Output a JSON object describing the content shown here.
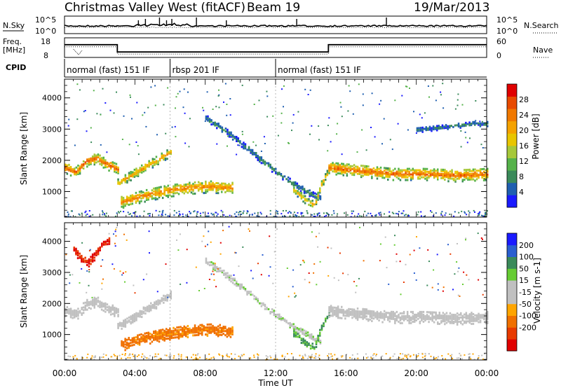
{
  "header": {
    "station": "Christmas Valley West (fitACF)",
    "beam": "Beam 19",
    "date": "19/Mar/2013"
  },
  "noise_panel": {
    "left_label": "N.Sky",
    "right_label": "N.Search",
    "left_ticks": [
      "10^5",
      "10^0"
    ],
    "right_ticks": [
      "10^5",
      "10^0"
    ]
  },
  "freq_panel": {
    "left_label_1": "Freq.",
    "left_label_2": "[MHz]",
    "right_label": "Nave",
    "left_ticks": [
      "18",
      "8"
    ],
    "right_ticks": [
      "60",
      "0"
    ],
    "freq_series_mhz": [
      {
        "t": 0.0,
        "v": 14.5
      },
      {
        "t": 3.0,
        "v": 14.5
      },
      {
        "t": 3.0,
        "v": 10.8
      },
      {
        "t": 15.0,
        "v": 10.8
      },
      {
        "t": 15.0,
        "v": 14.5
      },
      {
        "t": 24.0,
        "v": 14.5
      }
    ]
  },
  "cpid": {
    "label": "CPID",
    "segments": [
      {
        "start": 0.0,
        "end": 6.0,
        "name": "normal (fast) 151 IF"
      },
      {
        "start": 6.0,
        "end": 12.0,
        "name": "rbsp 201 IF"
      },
      {
        "start": 12.0,
        "end": 24.0,
        "name": "normal (fast) 151 IF"
      }
    ]
  },
  "colors": {
    "power": [
      "#1a1aff",
      "#1f5fb0",
      "#3a8a5a",
      "#55b24a",
      "#a6c83a",
      "#e8c500",
      "#f5a200",
      "#f07800",
      "#e84a00",
      "#e00000"
    ],
    "velocity": [
      "#1a1aff",
      "#2a5fd0",
      "#3a8a5a",
      "#66cc33",
      "#c0c0c0",
      "#c0c0c0",
      "#ffa500",
      "#f07000",
      "#e83a00",
      "#e00000"
    ],
    "ground_scatter": "#c0c0c0"
  },
  "chart_data": [
    {
      "type": "heatmap",
      "name": "power",
      "ylabel": "Slant Range [km]",
      "ylim": [
        180,
        4600
      ],
      "xlim": [
        0,
        24
      ],
      "yticks": [
        1000,
        2000,
        3000,
        4000
      ],
      "colorbar_label": "Power [dB]",
      "colorbar_range": [
        0,
        32
      ],
      "colorbar_ticks": [
        4,
        8,
        12,
        16,
        20,
        24,
        28
      ],
      "regions": [
        {
          "t0": 0.0,
          "t1": 3.0,
          "r_center": [
            1800,
            1650,
            2000,
            2100,
            1900,
            1750
          ],
          "width": 350,
          "peak_db": 26
        },
        {
          "t0": 3.0,
          "t1": 6.0,
          "r_center": [
            1300,
            1500,
            1700,
            1900,
            2100,
            2300
          ],
          "width": 300,
          "peak_db": 22
        },
        {
          "t0": 3.2,
          "t1": 9.5,
          "r_center": [
            700,
            900,
            1050,
            1150,
            1200,
            1150
          ],
          "width": 400,
          "peak_db": 24
        },
        {
          "t0": 8.0,
          "t1": 14.5,
          "r_center": [
            3400,
            2900,
            2300,
            1700,
            1200,
            800
          ],
          "width": 200,
          "peak_db": 8
        },
        {
          "t0": 13.0,
          "t1": 15.0,
          "r_center": [
            1100,
            900,
            700,
            600,
            1300,
            1700
          ],
          "width": 250,
          "peak_db": 20
        },
        {
          "t0": 15.0,
          "t1": 24.0,
          "r_center": [
            1800,
            1700,
            1600,
            1600,
            1550,
            1600
          ],
          "width": 400,
          "peak_db": 26
        },
        {
          "t0": 20.0,
          "t1": 24.0,
          "r_center": [
            3000,
            3050,
            3100,
            3150,
            3200,
            3200
          ],
          "width": 150,
          "peak_db": 7
        }
      ]
    },
    {
      "type": "heatmap",
      "name": "velocity",
      "ylabel": "Slant Range [km]",
      "xlabel": "Time UT",
      "ylim": [
        180,
        4600
      ],
      "xlim": [
        0,
        24
      ],
      "yticks": [
        1000,
        2000,
        3000,
        4000
      ],
      "xticks": [
        "00:00",
        "04:00",
        "08:00",
        "12:00",
        "16:00",
        "20:00",
        "00:00"
      ],
      "xtick_values": [
        0,
        4,
        8,
        12,
        16,
        20,
        24
      ],
      "colorbar_label": "Velocity [m s-1]",
      "colorbar_range": [
        -250,
        250
      ],
      "colorbar_ticks": [
        "200",
        "100",
        "50",
        "15",
        "-15",
        "-50",
        "-100",
        "-200"
      ],
      "regions": [
        {
          "t0": 0.0,
          "t1": 3.0,
          "r_center": [
            1800,
            1650,
            2000,
            2100,
            1900,
            1750
          ],
          "width": 350,
          "vel": 0
        },
        {
          "t0": 3.0,
          "t1": 6.0,
          "r_center": [
            1300,
            1500,
            1700,
            1900,
            2100,
            2300
          ],
          "width": 300,
          "vel": 0
        },
        {
          "t0": 3.2,
          "t1": 9.5,
          "r_center": [
            700,
            900,
            1050,
            1150,
            1200,
            1150
          ],
          "width": 400,
          "vel": -40
        },
        {
          "t0": 8.0,
          "t1": 14.5,
          "r_center": [
            3400,
            2900,
            2300,
            1700,
            1200,
            800
          ],
          "width": 200,
          "vel": 5
        },
        {
          "t0": 13.0,
          "t1": 15.0,
          "r_center": [
            1100,
            900,
            700,
            600,
            1300,
            1700
          ],
          "width": 250,
          "vel": 35
        },
        {
          "t0": 15.0,
          "t1": 24.0,
          "r_center": [
            1800,
            1700,
            1600,
            1600,
            1550,
            1600
          ],
          "width": 400,
          "vel": 0
        },
        {
          "t0": 0.5,
          "t1": 2.5,
          "r_center": [
            3800,
            3500,
            3300,
            3600,
            3900,
            4100
          ],
          "width": 300,
          "vel": -150
        }
      ]
    }
  ]
}
